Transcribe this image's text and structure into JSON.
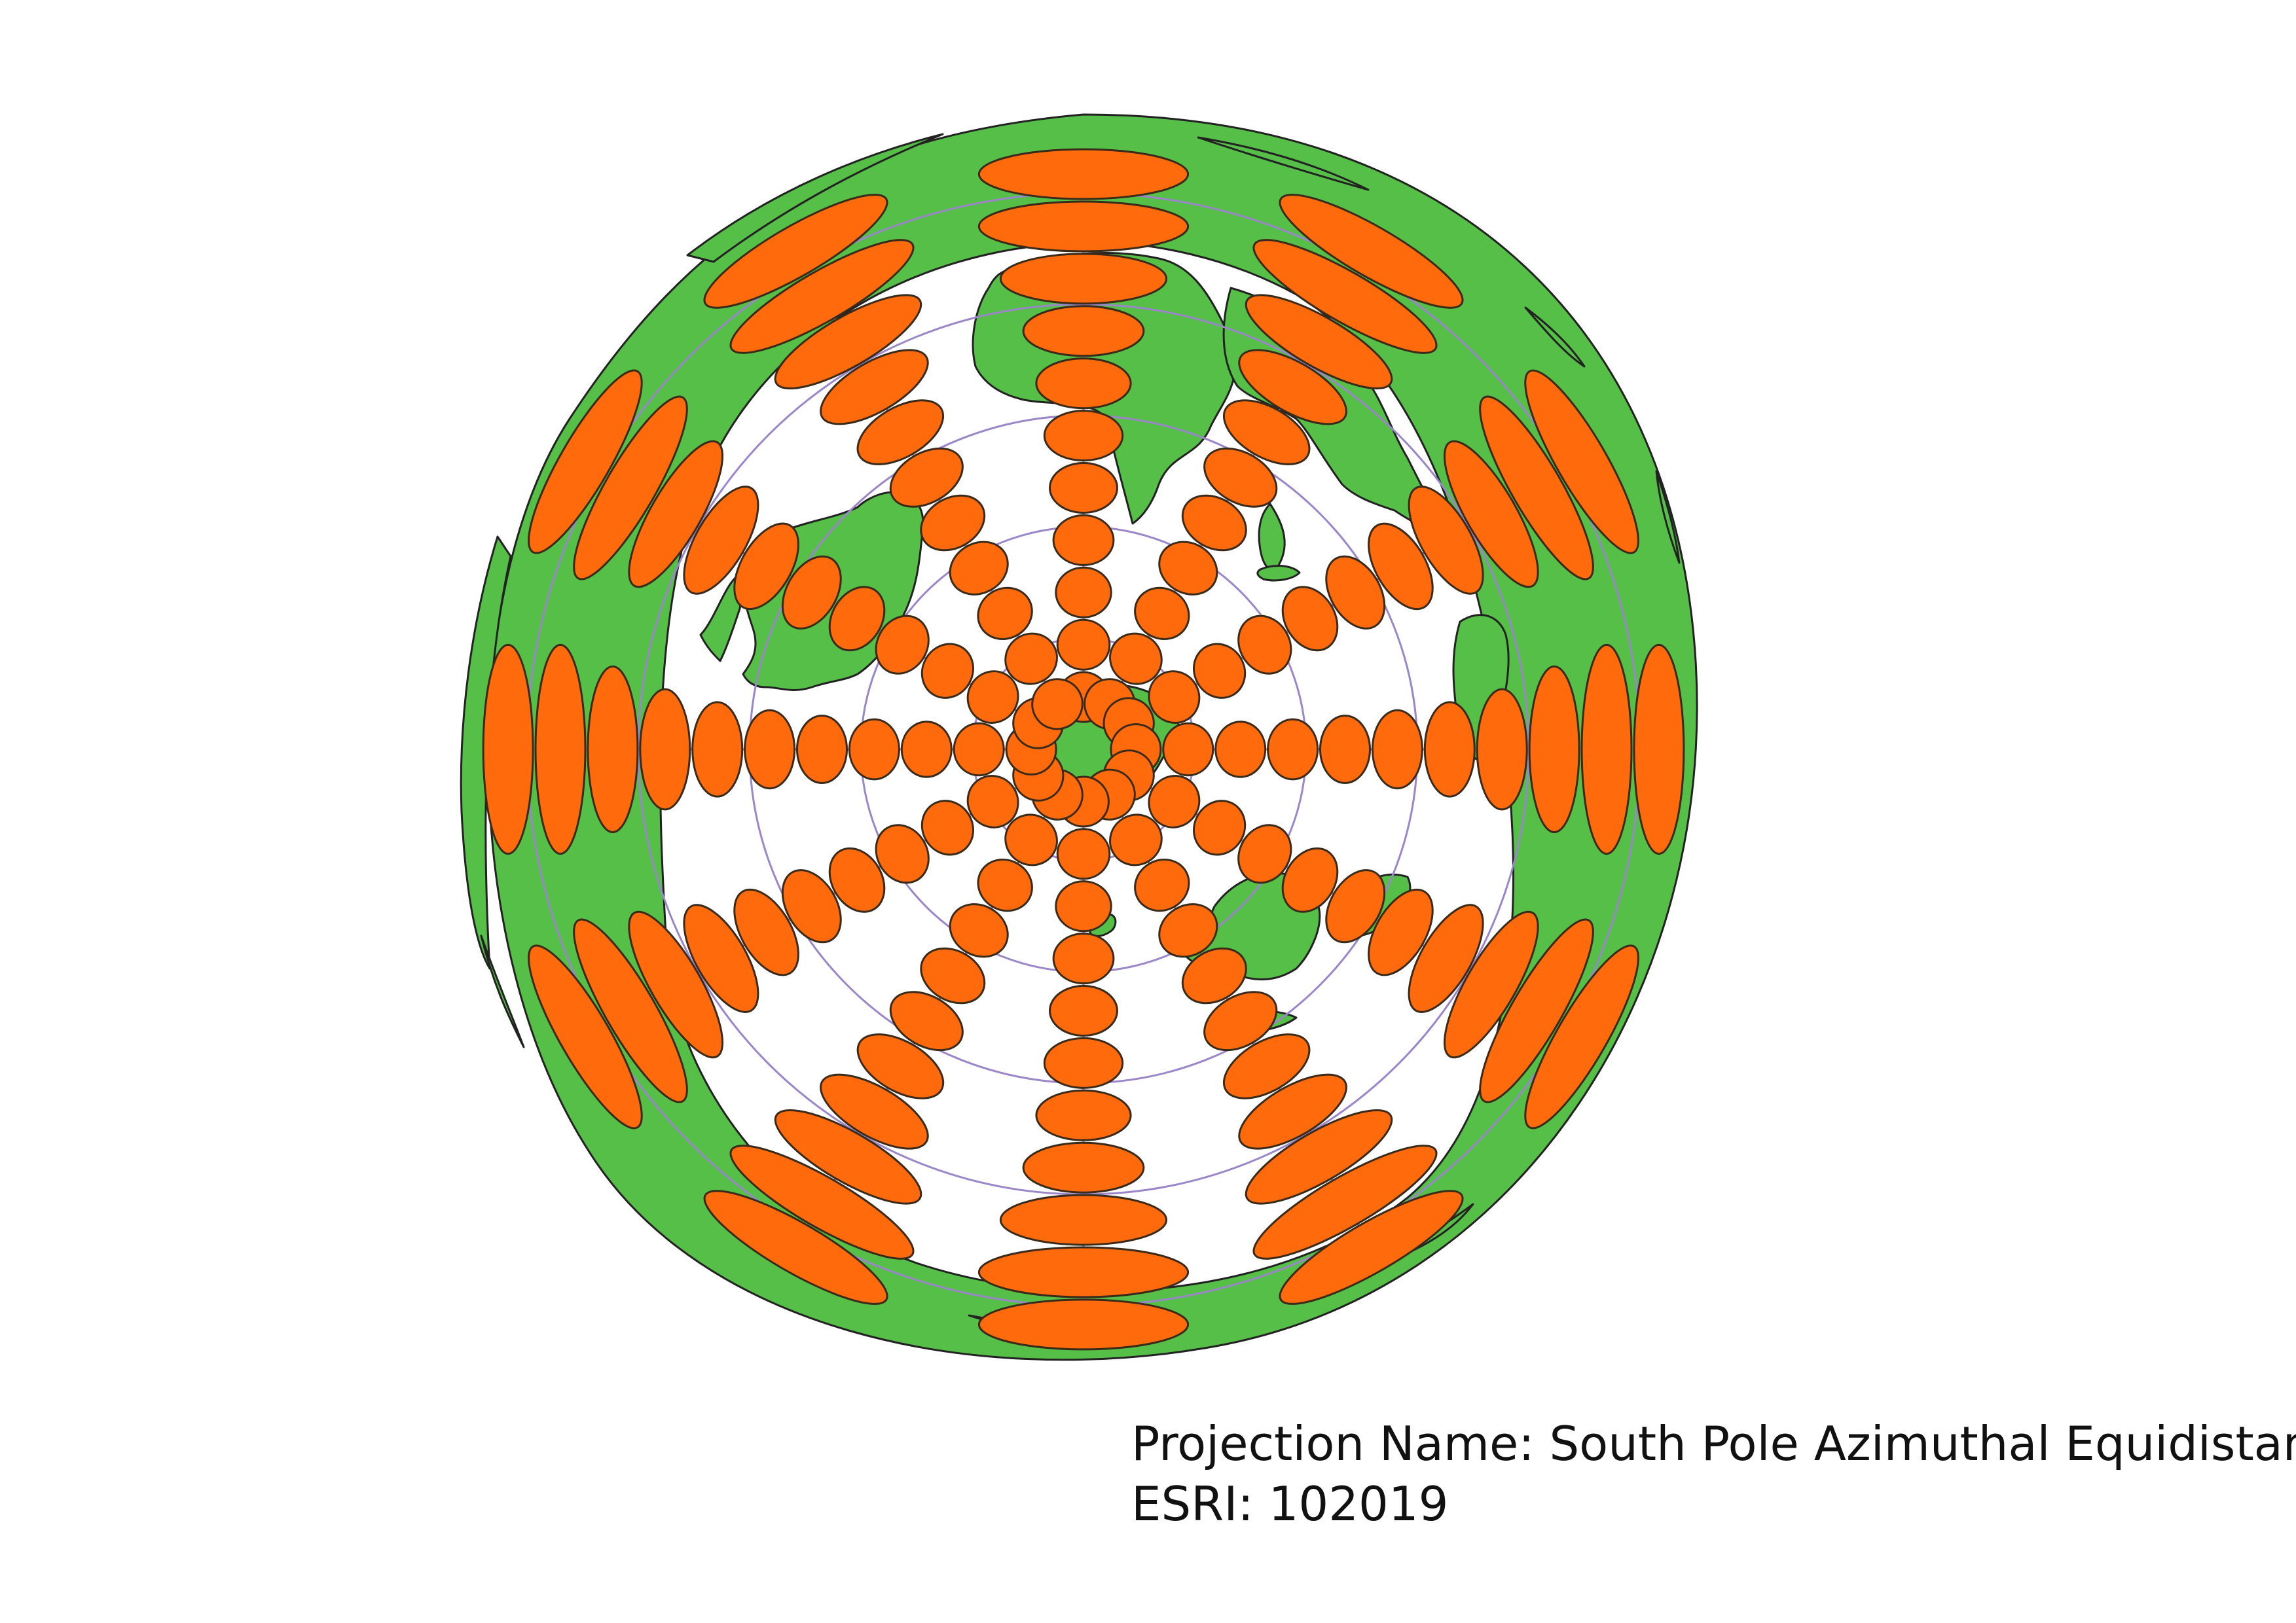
{
  "map": {
    "projection": "South Pole Azimuthal Equidistant",
    "colors": {
      "land": "#55bf47",
      "coastline": "#222222",
      "graticule": "#9a86c8",
      "tissot": "#ff6a0d",
      "background": "#ffffff"
    },
    "graticule": {
      "latitude_ring_spacing_deg": 15,
      "meridian_spacing_deg": 30
    },
    "tissot_indicatrices": {
      "ring_latitudes_deg": [
        -75,
        -60,
        -45,
        -30,
        -15,
        0,
        15,
        30,
        45,
        60,
        75
      ],
      "meridians_deg": [
        0,
        30,
        60,
        90,
        120,
        150,
        180,
        210,
        240,
        270,
        300,
        330
      ]
    }
  },
  "caption": {
    "projection_label": "Projection Name: South Pole Azimuthal Equidistant",
    "esri_label": "ESRI: 102019"
  }
}
